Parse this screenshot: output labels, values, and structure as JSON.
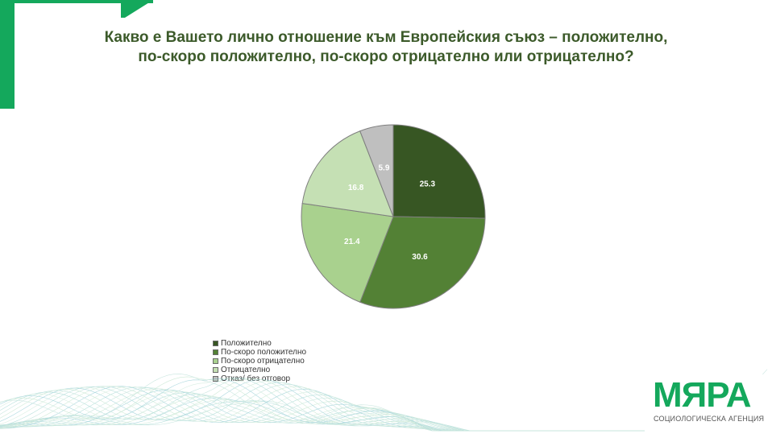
{
  "title": {
    "line1": "Какво е Вашето лично отношение към Европейския съюз – положително,",
    "line2": "по-скоро положително, по-скоро отрицателно или отрицателно?"
  },
  "chart_data": {
    "type": "pie",
    "title": "Какво е Вашето лично отношение към Европейския съюз – положително, по-скоро положително, по-скоро отрицателно или отрицателно?",
    "categories": [
      "Положително",
      "По-скоро положително",
      "По-скоро отрицателно",
      "Отрицателно",
      "Отказ/ без отговор"
    ],
    "values": [
      25.3,
      30.6,
      21.4,
      16.8,
      5.9
    ],
    "labels": [
      "25.3",
      "30.6",
      "21.4",
      "16.8",
      "5.9"
    ],
    "colors": [
      "#375623",
      "#538135",
      "#a9d18e",
      "#c5e0b4",
      "#bfbfbf"
    ],
    "label_colors": [
      "#ffffff",
      "#ffffff",
      "#ffffff",
      "#ffffff",
      "#ffffff"
    ],
    "legend_position": "bottom-left",
    "start_angle_deg": 0,
    "direction": "clockwise"
  },
  "branding": {
    "logo_text": "МЯРА",
    "logo_subtitle": "СОЦИОЛОГИЧЕСКА АГЕНЦИЯ",
    "accent_color": "#14a85c"
  }
}
